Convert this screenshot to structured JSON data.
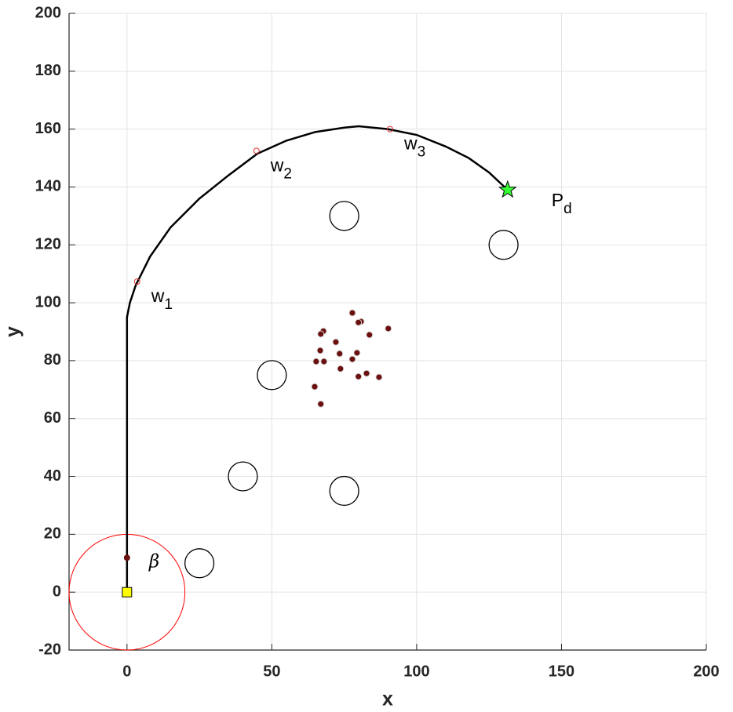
{
  "chart_data": {
    "type": "line",
    "xlabel": "x",
    "ylabel": "y",
    "xlim": [
      -20,
      200
    ],
    "ylim": [
      -20,
      200
    ],
    "xticks": [
      0,
      50,
      100,
      150,
      200
    ],
    "yticks": [
      -20,
      0,
      20,
      40,
      60,
      80,
      100,
      120,
      140,
      160,
      180,
      200
    ],
    "grid": true,
    "path": {
      "color": "#000000",
      "x": [
        0,
        0,
        0,
        0,
        0,
        0,
        1,
        3,
        8,
        15,
        25,
        35,
        45,
        55,
        65,
        75,
        80,
        90,
        100,
        110,
        118,
        125,
        131.4
      ],
      "y": [
        0,
        20,
        40,
        60,
        80,
        95,
        100,
        106,
        116,
        126,
        136,
        144,
        151.5,
        156,
        159,
        160.5,
        161,
        160,
        158,
        154,
        150,
        145,
        139
      ]
    },
    "waypoints": {
      "color": "#e03030",
      "x": [
        3.5,
        44.7,
        90.8
      ],
      "y": [
        107.3,
        152.5,
        160
      ],
      "labels": [
        {
          "text": "w",
          "sub": "1"
        },
        {
          "text": "w",
          "sub": "2"
        },
        {
          "text": "w",
          "sub": "3"
        }
      ]
    },
    "goal": {
      "color": "#33ff33",
      "x": 131.4,
      "y": 139,
      "label": {
        "text": "P",
        "sub": "d"
      }
    },
    "start": {
      "color": "#ffff00",
      "x": 0,
      "y": 0
    },
    "agent": {
      "color": "#6b0f0f",
      "x": 0,
      "y": 11.9
    },
    "sensing": {
      "color": "#ff0000",
      "x": 0,
      "y": 0,
      "radius": 20,
      "label": "β"
    },
    "obstacles": {
      "color": "#000000",
      "radius": 5,
      "x": [
        75,
        130,
        50,
        40,
        75,
        25
      ],
      "y": [
        130,
        120,
        75,
        40,
        35,
        10
      ]
    },
    "swarm": {
      "color": "#6b0f0f",
      "x": [
        77.8,
        80.8,
        79.9,
        90.2,
        67.8,
        66.9,
        72.1,
        83.7,
        66.7,
        73.4,
        79.4,
        77.8,
        65.3,
        68.0,
        73.7,
        82.7,
        79.9,
        87.0,
        64.8,
        66.9
      ],
      "y": [
        96.5,
        93.5,
        93.2,
        91.1,
        90.2,
        89.2,
        86.4,
        88.9,
        83.5,
        82.4,
        82.7,
        80.5,
        79.7,
        79.7,
        77.2,
        75.6,
        74.5,
        74.3,
        71.0,
        65.0
      ]
    }
  }
}
